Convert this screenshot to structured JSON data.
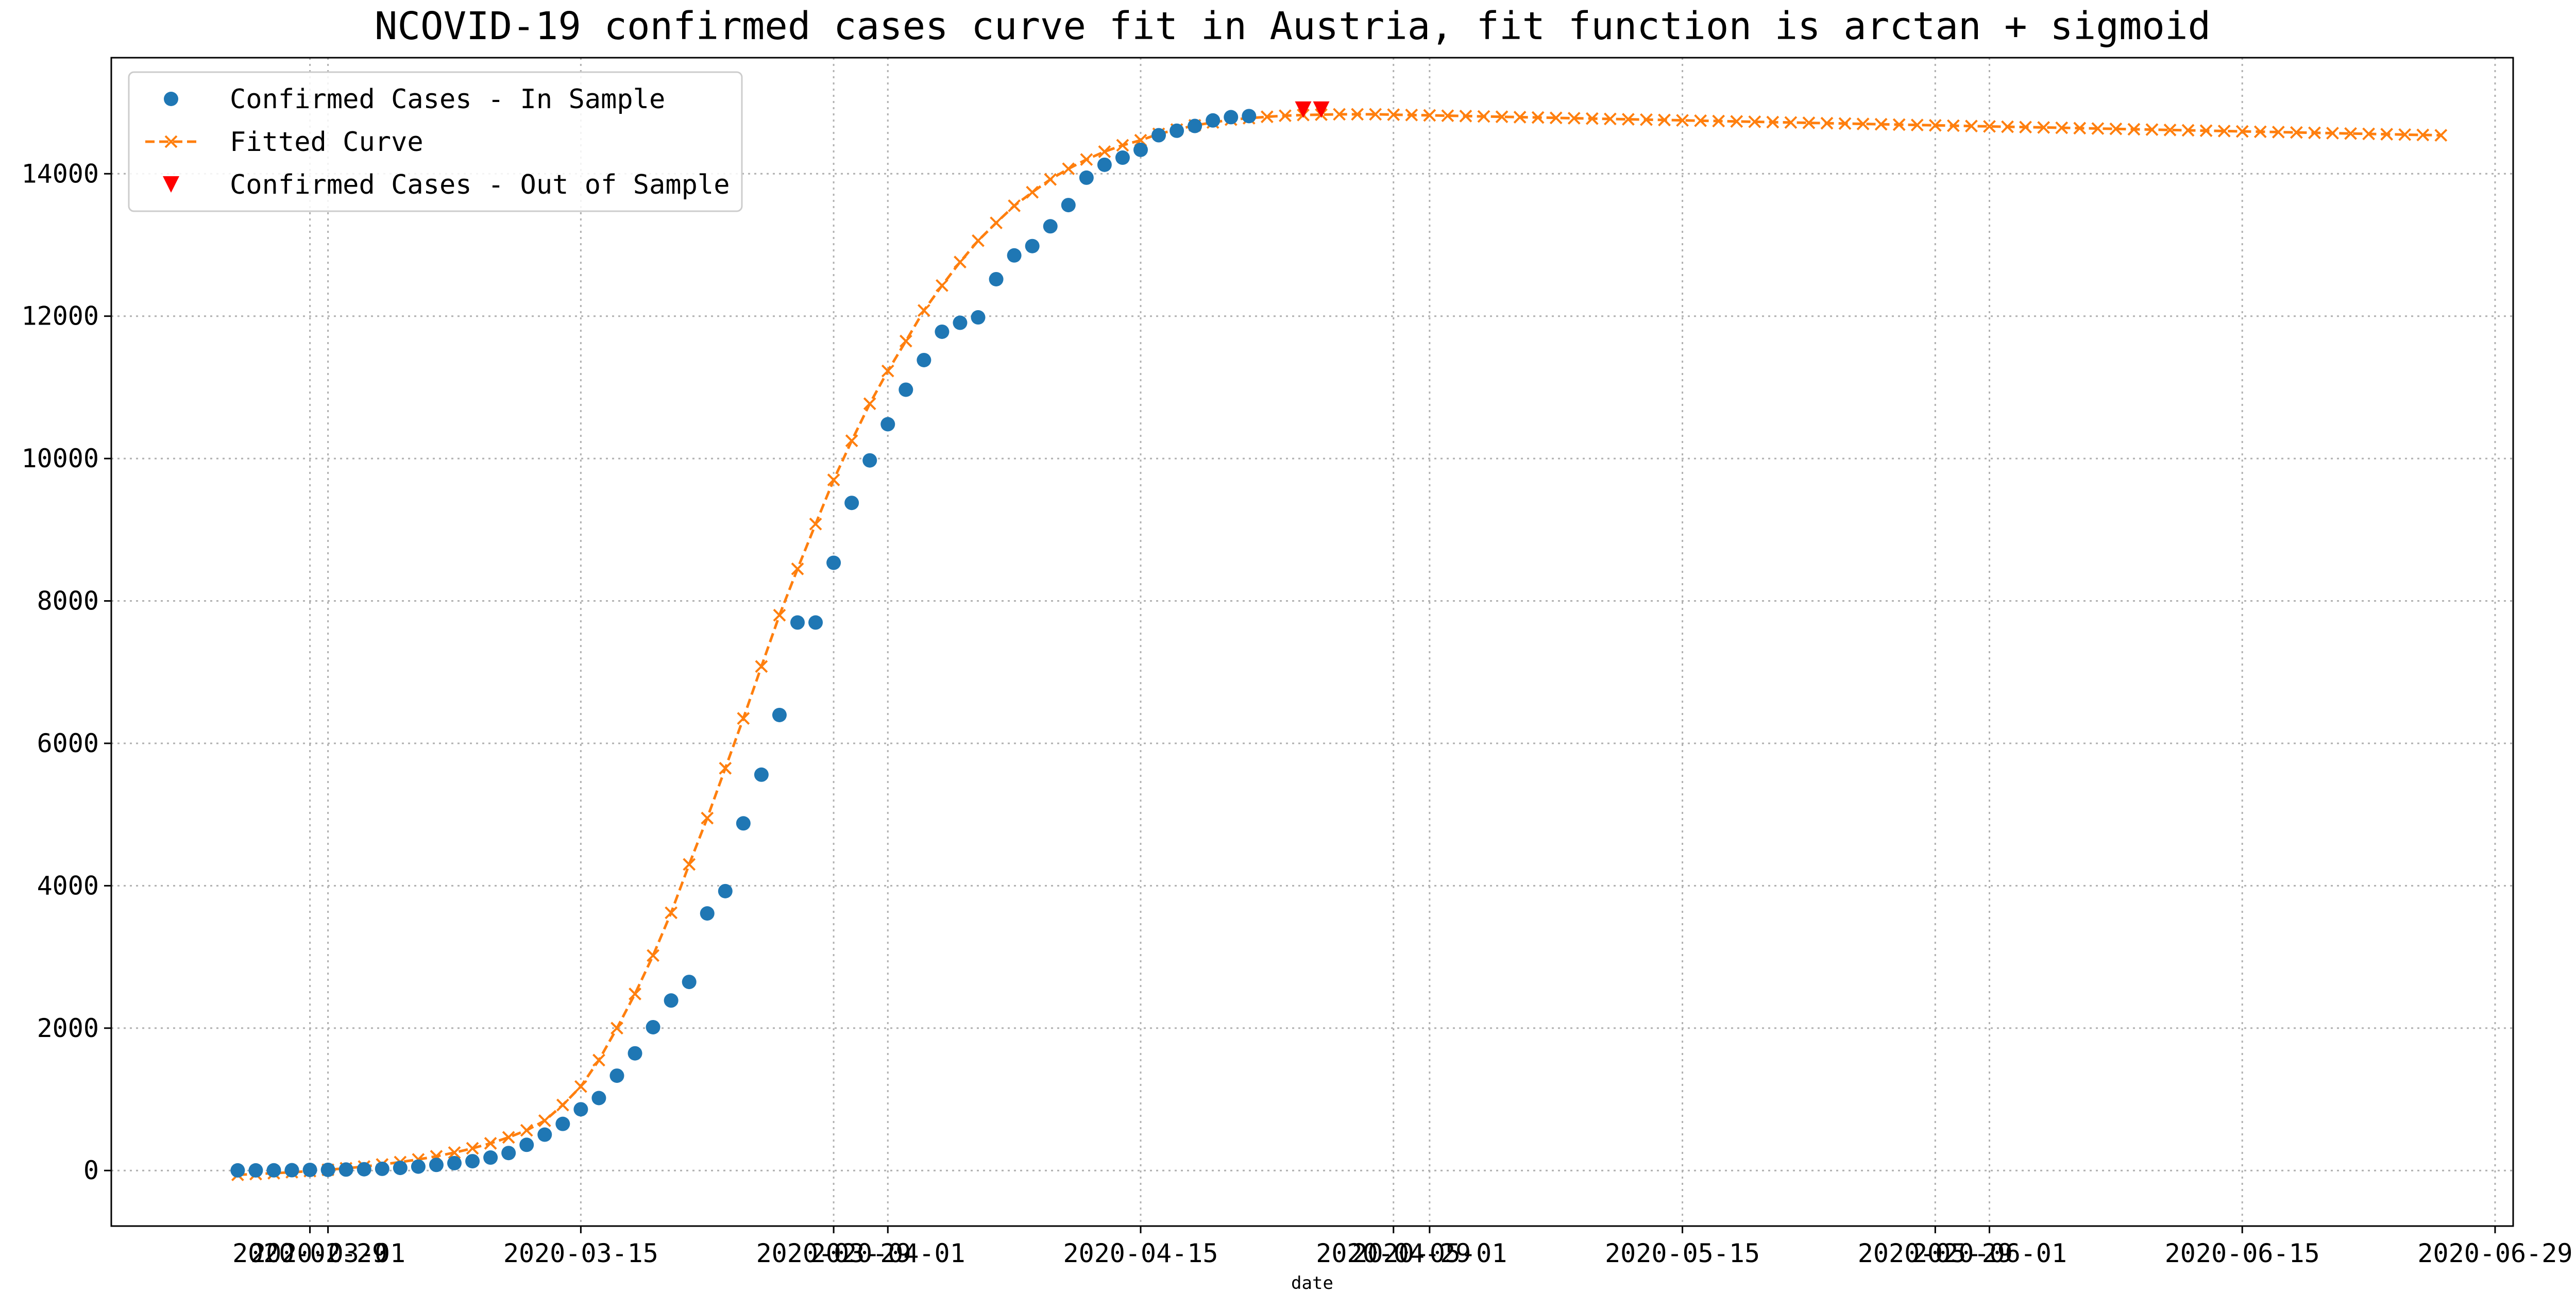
{
  "chart_data": {
    "type": "line",
    "title": "NCOVID-19 confirmed cases curve fit in Austria, fit function is arctan + sigmoid",
    "xlabel": "date",
    "ylabel": "",
    "x_ticks": [
      "2020-02-29",
      "2020-03-01",
      "2020-03-15",
      "2020-03-29",
      "2020-04-01",
      "2020-04-15",
      "2020-04-29",
      "2020-05-01",
      "2020-05-15",
      "2020-05-29",
      "2020-06-01",
      "2020-06-15",
      "2020-06-29"
    ],
    "xlim": [
      "2020-02-18",
      "2020-06-30"
    ],
    "y_ticks": [
      0,
      2000,
      4000,
      6000,
      8000,
      10000,
      12000,
      14000
    ],
    "ylim": [
      -780,
      15630
    ],
    "grid": true,
    "legend_position": "top-left",
    "series": [
      {
        "name": "Confirmed Cases - In Sample",
        "marker": "circle",
        "color": "#1f77b4",
        "x": [
          "2020-02-25",
          "2020-02-26",
          "2020-02-27",
          "2020-02-28",
          "2020-02-29",
          "2020-03-01",
          "2020-03-02",
          "2020-03-03",
          "2020-03-04",
          "2020-03-05",
          "2020-03-06",
          "2020-03-07",
          "2020-03-08",
          "2020-03-09",
          "2020-03-10",
          "2020-03-11",
          "2020-03-12",
          "2020-03-13",
          "2020-03-14",
          "2020-03-15",
          "2020-03-16",
          "2020-03-17",
          "2020-03-18",
          "2020-03-19",
          "2020-03-20",
          "2020-03-21",
          "2020-03-22",
          "2020-03-23",
          "2020-03-24",
          "2020-03-25",
          "2020-03-26",
          "2020-03-27",
          "2020-03-28",
          "2020-03-29",
          "2020-03-30",
          "2020-03-31",
          "2020-04-01",
          "2020-04-02",
          "2020-04-03",
          "2020-04-04",
          "2020-04-05",
          "2020-04-06",
          "2020-04-07",
          "2020-04-08",
          "2020-04-09",
          "2020-04-10",
          "2020-04-11",
          "2020-04-12",
          "2020-04-13",
          "2020-04-14",
          "2020-04-15",
          "2020-04-16",
          "2020-04-17",
          "2020-04-18",
          "2020-04-19",
          "2020-04-20",
          "2020-04-21",
          "2020-04-22",
          "2020-04-23"
        ],
        "y": [
          2,
          2,
          3,
          5,
          9,
          10,
          14,
          18,
          24,
          37,
          55,
          79,
          104,
          131,
          182,
          246,
          361,
          504,
          655,
          860,
          1018,
          1332,
          1646,
          2013,
          2388,
          2649,
          3611,
          3924,
          4876,
          5560,
          6398,
          7697,
          7697,
          8536,
          9377,
          9974,
          10482,
          10967,
          11383,
          11781,
          11907,
          11983,
          12519,
          12853,
          12984,
          13262,
          13560,
          13945,
          14126,
          14226,
          14336,
          14541,
          14604,
          14671,
          14749,
          14795,
          14810,
          null,
          null
        ]
      },
      {
        "name": "Fitted Curve",
        "marker": "x",
        "line": "dashed",
        "color": "#ff7f0e",
        "x_start": "2020-02-25",
        "x_step_days": 1,
        "y": [
          -60,
          -50,
          -38,
          -24,
          -8,
          10,
          32,
          56,
          85,
          118,
          156,
          200,
          252,
          312,
          382,
          466,
          565,
          700,
          920,
          1180,
          1550,
          2000,
          2480,
          3020,
          3620,
          4300,
          4950,
          5650,
          6350,
          7080,
          7800,
          8450,
          9080,
          9700,
          10250,
          10770,
          11230,
          11650,
          12080,
          12430,
          12760,
          13060,
          13310,
          13550,
          13740,
          13920,
          14070,
          14200,
          14310,
          14400,
          14470,
          14560,
          14620,
          14680,
          14720,
          14760,
          14780,
          14800,
          14815,
          14825,
          14830,
          14835,
          14835,
          14835,
          14830,
          14825,
          14820,
          14815,
          14810,
          14805,
          14800,
          14795,
          14790,
          14785,
          14780,
          14775,
          14770,
          14765,
          14760,
          14755,
          14750,
          14745,
          14740,
          14735,
          14730,
          14725,
          14720,
          14715,
          14710,
          14705,
          14700,
          14695,
          14690,
          14685,
          14680,
          14675,
          14670,
          14665,
          14660,
          14655,
          14650,
          14645,
          14640,
          14635,
          14630,
          14625,
          14620,
          14615,
          14610,
          14605,
          14600,
          14595,
          14590,
          14585,
          14580,
          14575,
          14570,
          14565,
          14560,
          14555,
          14550,
          14545,
          14540
        ]
      },
      {
        "name": "Confirmed Cases - Out of Sample",
        "marker": "triangle-down",
        "color": "#ff0000",
        "x": [
          "2020-04-24",
          "2020-04-25"
        ],
        "y": [
          14900,
          14900
        ]
      }
    ]
  }
}
